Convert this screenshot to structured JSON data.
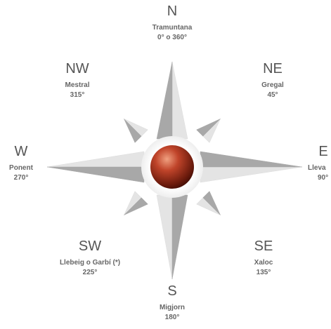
{
  "directions": [
    {
      "abbr": "N",
      "wind": "Tramuntana",
      "degrees": "0° o 360°"
    },
    {
      "abbr": "NE",
      "wind": "Gregal",
      "degrees": "45°"
    },
    {
      "abbr": "E",
      "wind": "Lleva",
      "degrees": "90°"
    },
    {
      "abbr": "SE",
      "wind": "Xaloc",
      "degrees": "135°"
    },
    {
      "abbr": "S",
      "wind": "Migjorn",
      "degrees": "180°"
    },
    {
      "abbr": "SW",
      "wind": "Llebeig o Garbí (*)",
      "degrees": "225°"
    },
    {
      "abbr": "W",
      "wind": "Ponent",
      "degrees": "270°"
    },
    {
      "abbr": "NW",
      "wind": "Mestral",
      "degrees": "315°"
    }
  ]
}
